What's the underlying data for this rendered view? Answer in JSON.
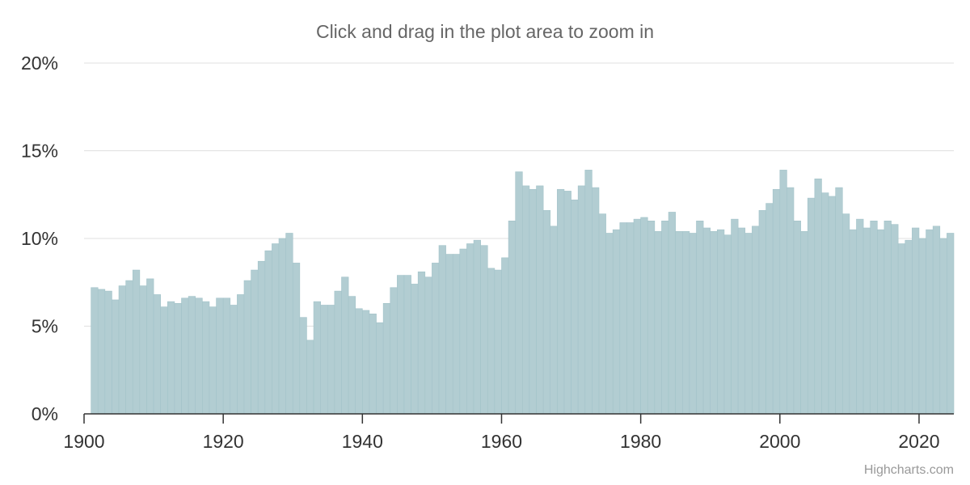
{
  "subtitle": "Click and drag in the plot area to zoom in",
  "credits": "Highcharts.com",
  "colors": {
    "bar_fill": "#b2cdd2",
    "bar_stroke": "#a3c3c9",
    "grid": "#e0e0e0",
    "axis_line": "#333333",
    "tick_label": "#333333"
  },
  "chart_data": {
    "type": "bar",
    "title": "",
    "xlabel": "",
    "ylabel": "",
    "xlim": [
      1900,
      2025
    ],
    "ylim": [
      0,
      20
    ],
    "grid": true,
    "legend": "none",
    "y_ticks": [
      {
        "value": 0,
        "label": "0%"
      },
      {
        "value": 5,
        "label": "5%"
      },
      {
        "value": 10,
        "label": "10%"
      },
      {
        "value": 15,
        "label": "15%"
      },
      {
        "value": 20,
        "label": "20%"
      }
    ],
    "x_ticks": [
      {
        "value": 1900,
        "label": "1900"
      },
      {
        "value": 1920,
        "label": "1920"
      },
      {
        "value": 1940,
        "label": "1940"
      },
      {
        "value": 1960,
        "label": "1960"
      },
      {
        "value": 1980,
        "label": "1980"
      },
      {
        "value": 2000,
        "label": "2000"
      },
      {
        "value": 2020,
        "label": "2020"
      }
    ],
    "x": [
      1901,
      1902,
      1903,
      1904,
      1905,
      1906,
      1907,
      1908,
      1909,
      1910,
      1911,
      1912,
      1913,
      1914,
      1915,
      1916,
      1917,
      1918,
      1919,
      1920,
      1921,
      1922,
      1923,
      1924,
      1925,
      1926,
      1927,
      1928,
      1929,
      1930,
      1931,
      1932,
      1933,
      1934,
      1935,
      1936,
      1937,
      1938,
      1939,
      1940,
      1941,
      1942,
      1943,
      1944,
      1945,
      1946,
      1947,
      1948,
      1949,
      1950,
      1951,
      1952,
      1953,
      1954,
      1955,
      1956,
      1957,
      1958,
      1959,
      1960,
      1961,
      1962,
      1963,
      1964,
      1965,
      1966,
      1967,
      1968,
      1969,
      1970,
      1971,
      1972,
      1973,
      1974,
      1975,
      1976,
      1977,
      1978,
      1979,
      1980,
      1981,
      1982,
      1983,
      1984,
      1985,
      1986,
      1987,
      1988,
      1989,
      1990,
      1991,
      1992,
      1993,
      1994,
      1995,
      1996,
      1997,
      1998,
      1999,
      2000,
      2001,
      2002,
      2003,
      2004,
      2005,
      2006,
      2007,
      2008,
      2009,
      2010,
      2011,
      2012,
      2013,
      2014,
      2015,
      2016,
      2017,
      2018,
      2019,
      2020,
      2021,
      2022,
      2023,
      2024
    ],
    "values": [
      7.2,
      7.1,
      7.0,
      6.5,
      7.3,
      7.6,
      8.2,
      7.3,
      7.7,
      6.8,
      6.1,
      6.4,
      6.3,
      6.6,
      6.7,
      6.6,
      6.4,
      6.1,
      6.6,
      6.6,
      6.2,
      6.8,
      7.6,
      8.2,
      8.7,
      9.3,
      9.7,
      10.0,
      10.3,
      8.6,
      5.5,
      4.2,
      6.4,
      6.2,
      6.2,
      7.0,
      7.8,
      6.7,
      6.0,
      5.9,
      5.7,
      5.2,
      6.3,
      7.2,
      7.9,
      7.9,
      7.4,
      8.1,
      7.8,
      8.6,
      9.6,
      9.1,
      9.1,
      9.4,
      9.7,
      9.9,
      9.6,
      8.3,
      8.2,
      8.9,
      11.0,
      13.8,
      13.0,
      12.8,
      13.0,
      11.6,
      10.7,
      12.8,
      12.7,
      12.2,
      13.0,
      13.9,
      12.9,
      11.4,
      10.3,
      10.5,
      10.9,
      10.9,
      11.1,
      11.2,
      11.0,
      10.4,
      11.0,
      11.5,
      10.4,
      10.4,
      10.3,
      11.0,
      10.6,
      10.4,
      10.5,
      10.2,
      11.1,
      10.6,
      10.3,
      10.7,
      11.6,
      12.0,
      12.8,
      13.9,
      12.9,
      11.0,
      10.4,
      12.3,
      13.4,
      12.6,
      12.4,
      12.9,
      11.4,
      10.5,
      11.1,
      10.6,
      11.0,
      10.5,
      11.0,
      10.8,
      9.7,
      9.9,
      10.6,
      10.0,
      10.5,
      10.7,
      10.0,
      10.3
    ]
  }
}
